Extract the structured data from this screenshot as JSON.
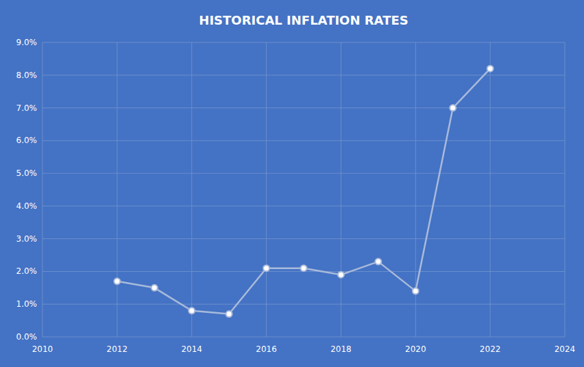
{
  "chart_data": {
    "type": "line",
    "title": "HISTORICAL INFLATION RATES",
    "x": [
      2012,
      2013,
      2014,
      2015,
      2016,
      2017,
      2018,
      2019,
      2020,
      2021,
      2022
    ],
    "values": [
      1.7,
      1.5,
      0.8,
      0.7,
      2.1,
      2.1,
      1.9,
      2.3,
      1.4,
      7.0,
      8.2
    ],
    "color": "#A8BADB",
    "marker": "circle",
    "xlim": [
      2010,
      2024
    ],
    "xticks": [
      2010,
      2012,
      2014,
      2016,
      2018,
      2020,
      2022,
      2024
    ],
    "ylim": [
      0.0,
      9.0
    ],
    "yticks": [
      {
        "value": 0.0,
        "label": "0.0%"
      },
      {
        "value": 1.0,
        "label": "1.0%"
      },
      {
        "value": 2.0,
        "label": "2.0%"
      },
      {
        "value": 3.0,
        "label": "3.0%"
      },
      {
        "value": 4.0,
        "label": "4.0%"
      },
      {
        "value": 5.0,
        "label": "5.0%"
      },
      {
        "value": 6.0,
        "label": "6.0%"
      },
      {
        "value": 7.0,
        "label": "7.0%"
      },
      {
        "value": 8.0,
        "label": "8.0%"
      },
      {
        "value": 9.0,
        "label": "9.0%"
      }
    ],
    "grid": true
  }
}
